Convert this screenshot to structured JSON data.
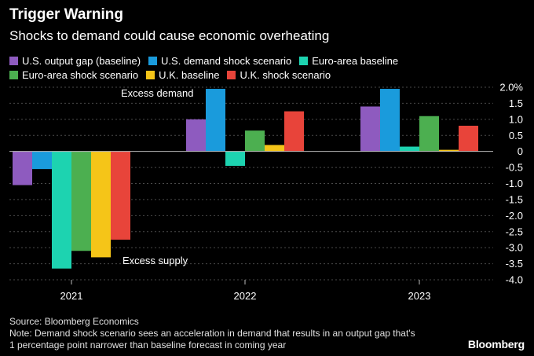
{
  "header": {
    "title": "Trigger Warning",
    "subtitle": "Shocks to demand could cause economic overheating"
  },
  "chart_data": {
    "type": "bar",
    "categories": [
      "2021",
      "2022",
      "2023"
    ],
    "series": [
      {
        "name": "U.S. output gap (baseline)",
        "color": "#8e5bbf",
        "values": [
          -1.05,
          1.0,
          1.4
        ]
      },
      {
        "name": "U.S. demand shock scenario",
        "color": "#1a9bdc",
        "values": [
          -0.55,
          1.95,
          1.95
        ]
      },
      {
        "name": "Euro-area baseline",
        "color": "#1dd3b0",
        "values": [
          -3.65,
          -0.45,
          0.15
        ]
      },
      {
        "name": "Euro-area shock scenario",
        "color": "#4caf50",
        "values": [
          -3.1,
          0.65,
          1.1
        ]
      },
      {
        "name": "U.K. baseline",
        "color": "#f5c518",
        "values": [
          -3.3,
          0.2,
          0.05
        ]
      },
      {
        "name": "U.K. shock scenario",
        "color": "#e8443a",
        "values": [
          -2.75,
          1.25,
          0.8
        ]
      }
    ],
    "ylim": [
      -4.0,
      2.0
    ],
    "yticks": [
      "2.0%",
      "1.5",
      "1.0",
      "0.5",
      "0",
      "-0.5",
      "-1.0",
      "-1.5",
      "-2.0",
      "-2.5",
      "-3.0",
      "-3.5",
      "-4.0"
    ],
    "ytick_values": [
      2.0,
      1.5,
      1.0,
      0.5,
      0,
      -0.5,
      -1.0,
      -1.5,
      -2.0,
      -2.5,
      -3.0,
      -3.5,
      -4.0
    ],
    "annotations": [
      {
        "text": "Excess demand"
      },
      {
        "text": "Excess supply"
      }
    ],
    "grid": true
  },
  "footer": {
    "source": "Source: Bloomberg Economics",
    "note_line1": "Note: Demand shock scenario sees an acceleration in demand that results in an output gap that's",
    "note_line2": "1 percentage point narrower than baseline forecast in coming year"
  },
  "brand": "Bloomberg"
}
